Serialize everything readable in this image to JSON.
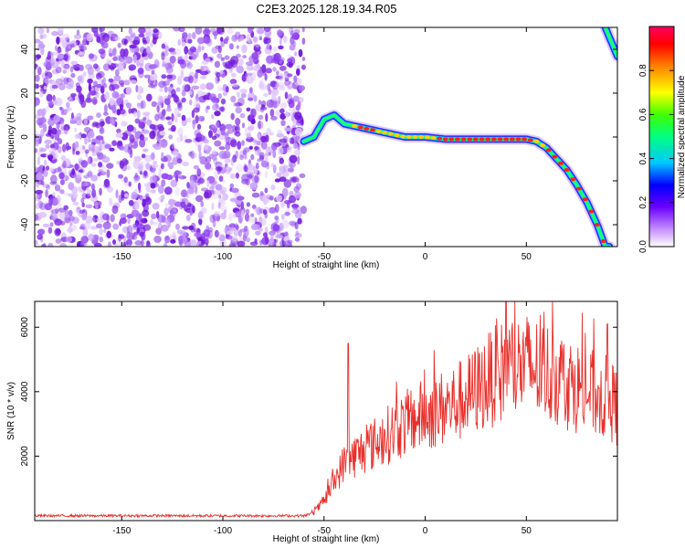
{
  "title": "C2E3.2025.128.19.34.R05",
  "colors": {
    "noise_purple": "#7a1fe0",
    "snr_line": "#e8302c",
    "frame": "#000000"
  },
  "chart_data": [
    {
      "type": "heatmap",
      "xlabel": "Height of straight line (km)",
      "ylabel": "Frequency (Hz)",
      "xlim": [
        -193,
        95
      ],
      "ylim": [
        -50,
        50
      ],
      "xticks": [
        -150,
        -100,
        -50,
        0,
        50
      ],
      "yticks": [
        -40,
        -20,
        0,
        20,
        40
      ],
      "colorbar": {
        "label": "Normalized spectral amplitude",
        "range": [
          0,
          1
        ],
        "ticks": [
          "0.0",
          "0.2",
          "0.4",
          "0.6",
          "0.8"
        ]
      },
      "ridge": [
        {
          "x": -60,
          "y": -2
        },
        {
          "x": -55,
          "y": 0
        },
        {
          "x": -50,
          "y": 8
        },
        {
          "x": -45,
          "y": 10
        },
        {
          "x": -40,
          "y": 6
        },
        {
          "x": -30,
          "y": 4
        },
        {
          "x": -20,
          "y": 2
        },
        {
          "x": -10,
          "y": 0
        },
        {
          "x": 0,
          "y": 0
        },
        {
          "x": 10,
          "y": -1
        },
        {
          "x": 20,
          "y": -1
        },
        {
          "x": 30,
          "y": -1
        },
        {
          "x": 40,
          "y": -1
        },
        {
          "x": 50,
          "y": -1
        },
        {
          "x": 55,
          "y": -2
        },
        {
          "x": 60,
          "y": -5
        },
        {
          "x": 65,
          "y": -10
        },
        {
          "x": 70,
          "y": -15
        },
        {
          "x": 75,
          "y": -22
        },
        {
          "x": 80,
          "y": -30
        },
        {
          "x": 85,
          "y": -40
        },
        {
          "x": 89,
          "y": -50
        }
      ]
    },
    {
      "type": "line",
      "xlabel": "Height of straight line (km)",
      "ylabel": "SNR (10 * v/v)",
      "xlim": [
        -193,
        95
      ],
      "ylim": [
        0,
        6800
      ],
      "xticks": [
        -150,
        -100,
        -50,
        0,
        50
      ],
      "yticks": [
        2000,
        4000,
        6000
      ],
      "series": [
        {
          "envelope": [
            {
              "x": -193,
              "y": 150
            },
            {
              "x": -60,
              "y": 150
            },
            {
              "x": -55,
              "y": 250
            },
            {
              "x": -50,
              "y": 600
            },
            {
              "x": -45,
              "y": 1200
            },
            {
              "x": -40,
              "y": 1800
            },
            {
              "x": -30,
              "y": 2200
            },
            {
              "x": -20,
              "y": 2600
            },
            {
              "x": -10,
              "y": 3000
            },
            {
              "x": 0,
              "y": 3300
            },
            {
              "x": 10,
              "y": 3500
            },
            {
              "x": 20,
              "y": 3800
            },
            {
              "x": 30,
              "y": 4300
            },
            {
              "x": 40,
              "y": 4700
            },
            {
              "x": 50,
              "y": 4800
            },
            {
              "x": 60,
              "y": 4600
            },
            {
              "x": 70,
              "y": 4300
            },
            {
              "x": 80,
              "y": 4000
            },
            {
              "x": 90,
              "y": 3800
            },
            {
              "x": 95,
              "y": 3500
            }
          ],
          "peaks": [
            {
              "x": -38,
              "y": 5500
            },
            {
              "x": 40,
              "y": 6800
            },
            {
              "x": 90,
              "y": 6100
            }
          ]
        }
      ]
    }
  ]
}
